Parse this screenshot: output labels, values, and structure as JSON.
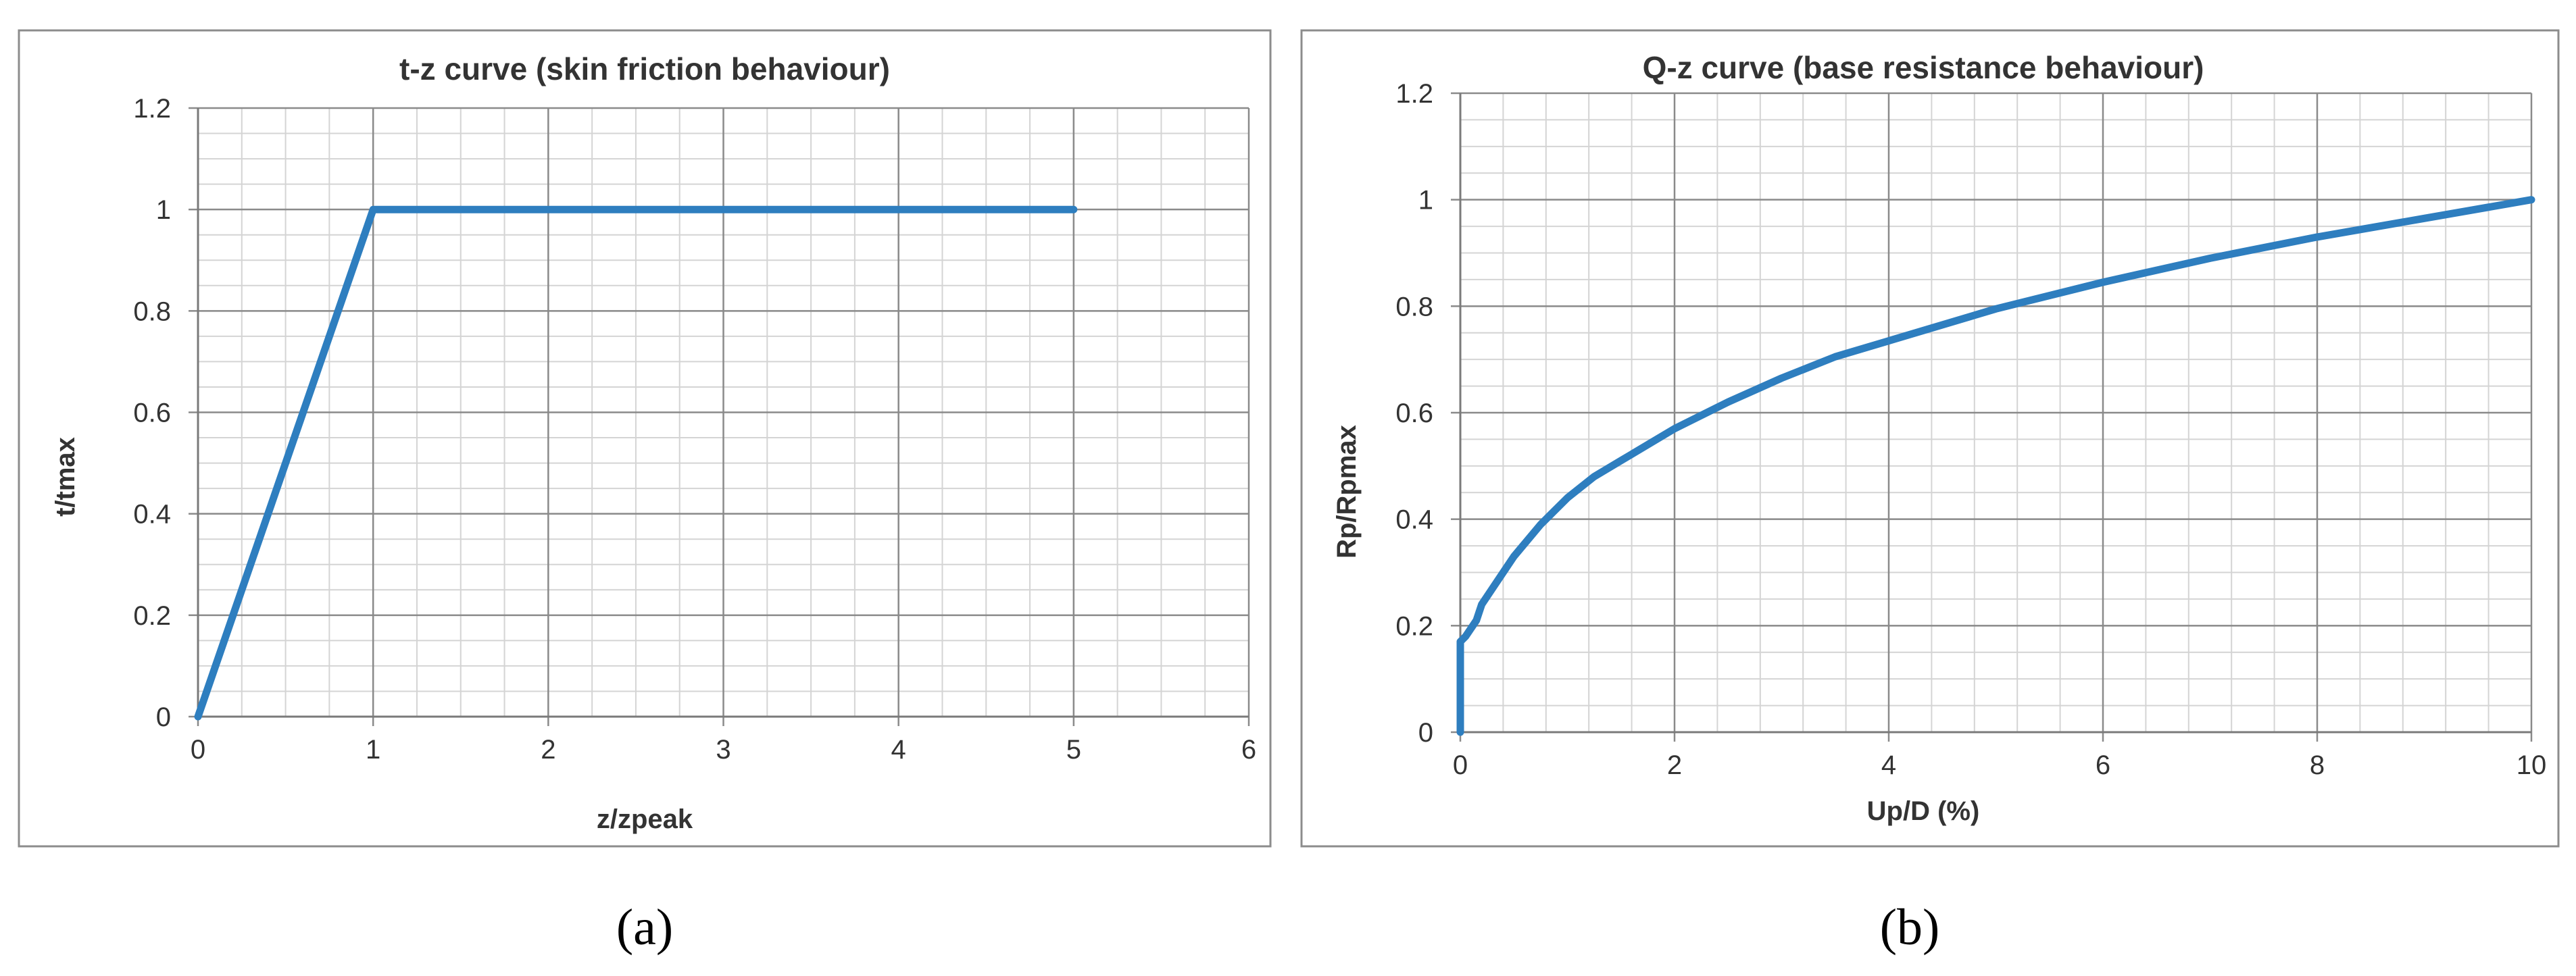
{
  "chart_data": [
    {
      "type": "line",
      "panel_label": "(a)",
      "title": "t-z curve (skin friction behaviour)",
      "xlabel": "z/zpeak",
      "ylabel": "t/tmax",
      "xlim": [
        0,
        6
      ],
      "ylim": [
        0,
        1.2
      ],
      "xticks": [
        "0",
        "1",
        "2",
        "3",
        "4",
        "5",
        "6"
      ],
      "yticks": [
        "0",
        "0.2",
        "0.4",
        "0.6",
        "0.8",
        "1",
        "1.2"
      ],
      "grid": true,
      "legend": "none",
      "series": [
        {
          "color": "#2E7EBF",
          "x": [
            0,
            1,
            5
          ],
          "y": [
            0,
            1,
            1
          ]
        }
      ]
    },
    {
      "type": "line",
      "panel_label": "(b)",
      "title": "Q-z curve (base resistance behaviour)",
      "xlabel": "Up/D  (%)",
      "ylabel": "Rp/Rpmax",
      "xlim": [
        0,
        10
      ],
      "ylim": [
        0,
        1.2
      ],
      "xticks": [
        "0",
        "2",
        "4",
        "6",
        "8",
        "10"
      ],
      "yticks": [
        "0",
        "0.2",
        "0.4",
        "0.6",
        "0.8",
        "1",
        "1.2"
      ],
      "grid": true,
      "legend": "none",
      "series": [
        {
          "color": "#2E7EBF",
          "x": [
            0,
            0,
            0.05,
            0.15,
            0.2,
            0.3,
            0.5,
            0.75,
            1.0,
            1.25,
            1.5,
            2,
            2.5,
            3,
            3.5,
            4,
            5,
            6,
            7,
            8,
            9,
            10
          ],
          "y": [
            0,
            0.17,
            0.18,
            0.21,
            0.24,
            0.27,
            0.33,
            0.39,
            0.44,
            0.48,
            0.51,
            0.57,
            0.62,
            0.665,
            0.705,
            0.735,
            0.795,
            0.845,
            0.89,
            0.93,
            0.965,
            1.0
          ]
        }
      ]
    }
  ]
}
